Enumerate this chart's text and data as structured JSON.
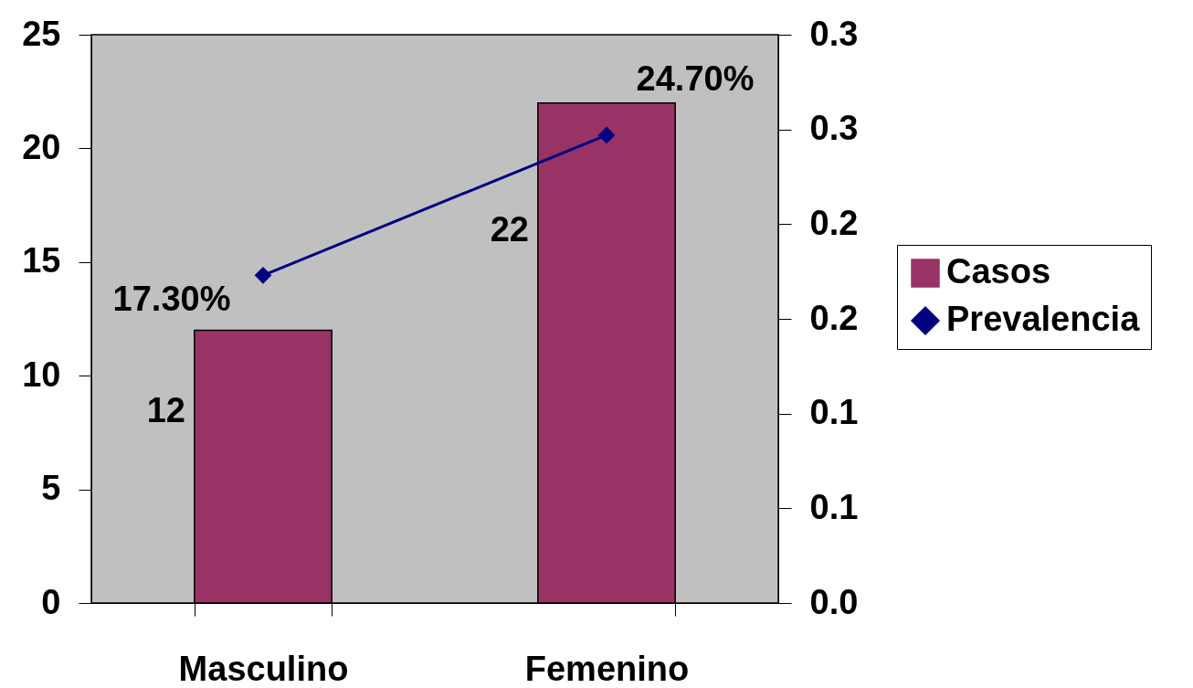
{
  "chart_data": {
    "type": "bar",
    "categories": [
      "Masculino",
      "Femenino"
    ],
    "series": [
      {
        "name": "Casos",
        "color": "#993366",
        "values": [
          12,
          22
        ],
        "value_labels": [
          "12",
          "22"
        ]
      },
      {
        "name": "Prevalencia",
        "type": "line",
        "axis": "y2",
        "color": "#000080",
        "values": [
          0.173,
          0.247
        ],
        "value_labels": [
          "17.30%",
          "24.70%"
        ],
        "marker": "diamond"
      }
    ],
    "ylim": [
      0,
      25
    ],
    "yticks": [
      0,
      5,
      10,
      15,
      20,
      25
    ],
    "y2lim": [
      0,
      0.3
    ],
    "y2ticks": [
      {
        "value": 0,
        "label": "0.0"
      },
      {
        "value": 0.05,
        "label": "0.1"
      },
      {
        "value": 0.1,
        "label": "0.1"
      },
      {
        "value": 0.15,
        "label": "0.2"
      },
      {
        "value": 0.2,
        "label": "0.2"
      },
      {
        "value": 0.25,
        "label": "0.3"
      },
      {
        "value": 0.3,
        "label": "0.3"
      }
    ],
    "grid": false,
    "legend": "right"
  }
}
